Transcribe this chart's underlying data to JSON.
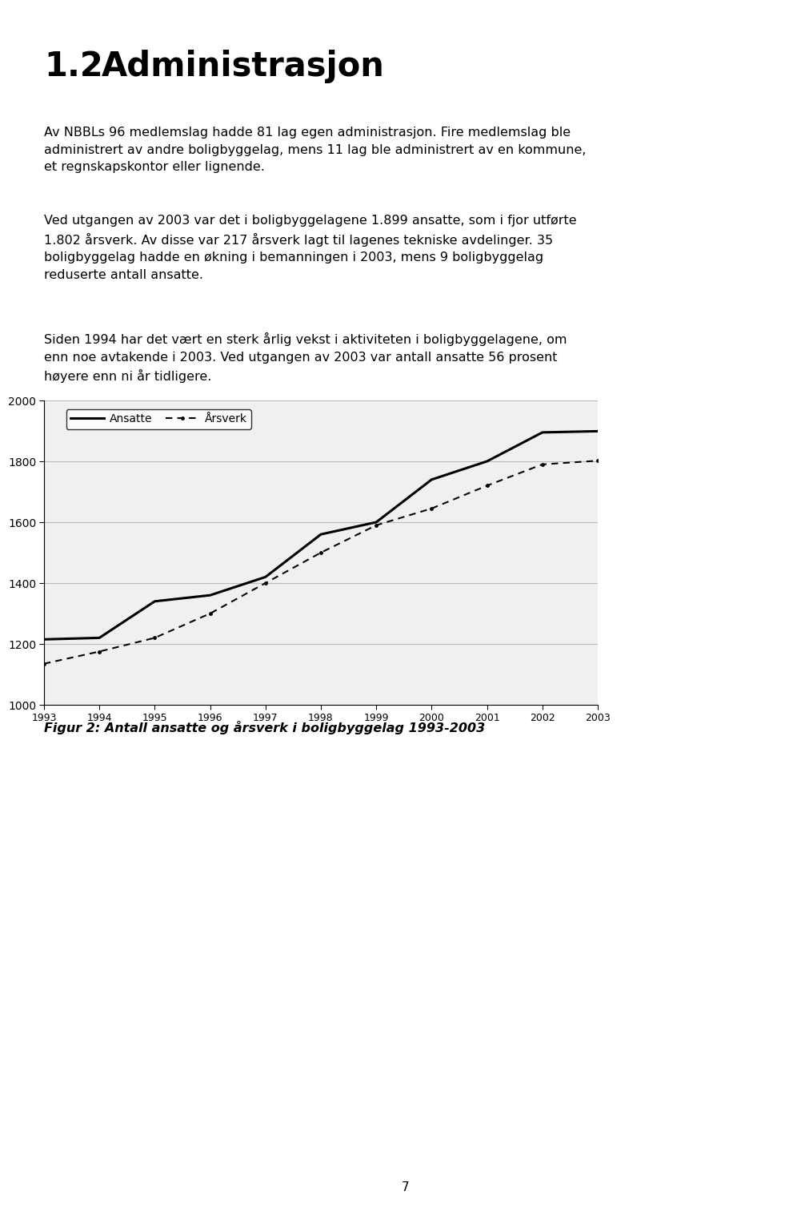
{
  "title_number": "1.2",
  "title_text": "Administrasjon",
  "para1": "Av NBBLs 96 medlemslag hadde 81 lag egen administrasjon. Fire medlemslag ble\nadministrert av andre boligbyggelag, mens 11 lag ble administrert av en kommune,\net regnskapskontor eller lignende.",
  "para2": "Ved utgangen av 2003 var det i boligbyggelagene 1.899 ansatte, som i fjor utførte\n1.802 årsverk. Av disse var 217 årsverk lagt til lagenes tekniske avdelinger. 35\nboligbyggelag hadde en økning i bemanningen i 2003, mens 9 boligbyggelag\nreduserte antall ansatte.",
  "para3": "Siden 1994 har det vært en sterk årlig vekst i aktiviteten i boligbyggelagene, om\nenn noe avtakende i 2003. Ved utgangen av 2003 var antall ansatte 56 prosent\nhøyere enn ni år tidligere.",
  "figure_caption": "Figur 2: Antall ansatte og årsverk i boligbyggelag 1993-2003",
  "page_number": "7",
  "years": [
    1993,
    1994,
    1995,
    1996,
    1997,
    1998,
    1999,
    2000,
    2001,
    2002,
    2003
  ],
  "ansatte": [
    1215,
    1220,
    1340,
    1360,
    1420,
    1560,
    1600,
    1740,
    1800,
    1895,
    1899
  ],
  "arsverk": [
    1135,
    1175,
    1220,
    1300,
    1400,
    1500,
    1590,
    1645,
    1720,
    1790,
    1802
  ],
  "ylim": [
    1000,
    2000
  ],
  "yticks": [
    1000,
    1200,
    1400,
    1600,
    1800,
    2000
  ],
  "legend_labels": [
    "Ansatte",
    "Årsverk"
  ],
  "chart_bg": "#f0f0f0",
  "page_bg": "#ffffff",
  "text_color": "#000000",
  "grid_color": "#bbbbbb",
  "line_color": "#000000",
  "title_fontsize": 30,
  "body_fontsize": 11.5,
  "caption_fontsize": 11.5,
  "page_num_fontsize": 11
}
